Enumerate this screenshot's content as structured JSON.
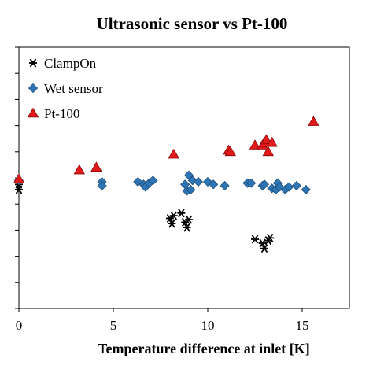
{
  "chart_data": {
    "type": "scatter",
    "title": "Ultrasonic sensor vs Pt-100",
    "xlabel": "Temperature difference at inlet [K]",
    "ylabel": "",
    "xlim": [
      0,
      17.5
    ],
    "ylim": [
      0,
      100
    ],
    "xticks": [
      "0",
      "5",
      "10",
      "15"
    ],
    "xtick_values": [
      0,
      5,
      10,
      15
    ],
    "ytick_values": [
      0,
      10,
      20,
      30,
      40,
      50,
      60,
      70,
      80,
      90,
      100
    ],
    "grid": false,
    "legend": "top-left",
    "series": [
      {
        "name": "ClampOn",
        "marker": "star",
        "color": "#000000",
        "points": [
          [
            0,
            47.5
          ],
          [
            0,
            45.5
          ],
          [
            8.0,
            34.5
          ],
          [
            8.1,
            32.5
          ],
          [
            8.2,
            35.5
          ],
          [
            8.6,
            36.5
          ],
          [
            8.8,
            33.0
          ],
          [
            8.9,
            31.0
          ],
          [
            9.0,
            34.0
          ],
          [
            12.5,
            26.5
          ],
          [
            12.9,
            25.0
          ],
          [
            13.0,
            23.0
          ],
          [
            13.2,
            26.0
          ],
          [
            13.3,
            27.0
          ]
        ]
      },
      {
        "name": "Wet sensor",
        "marker": "diamond",
        "color": "#2e75b6",
        "points": [
          [
            0,
            49.0
          ],
          [
            4.4,
            48.5
          ],
          [
            4.4,
            47.0
          ],
          [
            6.3,
            48.5
          ],
          [
            6.6,
            47.5
          ],
          [
            6.7,
            46.5
          ],
          [
            6.9,
            48.0
          ],
          [
            7.1,
            49.0
          ],
          [
            8.8,
            47.5
          ],
          [
            9.0,
            51.0
          ],
          [
            9.2,
            49.0
          ],
          [
            9.5,
            48.5
          ],
          [
            10.0,
            48.5
          ],
          [
            10.3,
            47.5
          ],
          [
            10.9,
            47.0
          ],
          [
            12.1,
            48.0
          ],
          [
            12.3,
            48.0
          ],
          [
            12.9,
            47.0
          ],
          [
            13.0,
            47.5
          ],
          [
            13.4,
            46.0
          ],
          [
            13.6,
            45.5
          ],
          [
            13.7,
            48.0
          ],
          [
            13.8,
            46.5
          ],
          [
            14.1,
            45.5
          ],
          [
            14.3,
            46.5
          ],
          [
            14.7,
            47.0
          ],
          [
            15.2,
            45.5
          ],
          [
            8.9,
            45.0
          ],
          [
            9.1,
            45.5
          ]
        ]
      },
      {
        "name": "Pt-100",
        "marker": "triangle",
        "color": "#e31a1c",
        "points": [
          [
            0,
            49.5
          ],
          [
            3.2,
            53.0
          ],
          [
            4.1,
            54.0
          ],
          [
            8.2,
            59.0
          ],
          [
            11.1,
            60.5
          ],
          [
            11.2,
            60.0
          ],
          [
            12.5,
            62.5
          ],
          [
            12.9,
            62.5
          ],
          [
            13.0,
            63.5
          ],
          [
            13.1,
            64.5
          ],
          [
            13.2,
            60.0
          ],
          [
            13.4,
            63.5
          ],
          [
            15.6,
            71.5
          ]
        ]
      }
    ]
  }
}
